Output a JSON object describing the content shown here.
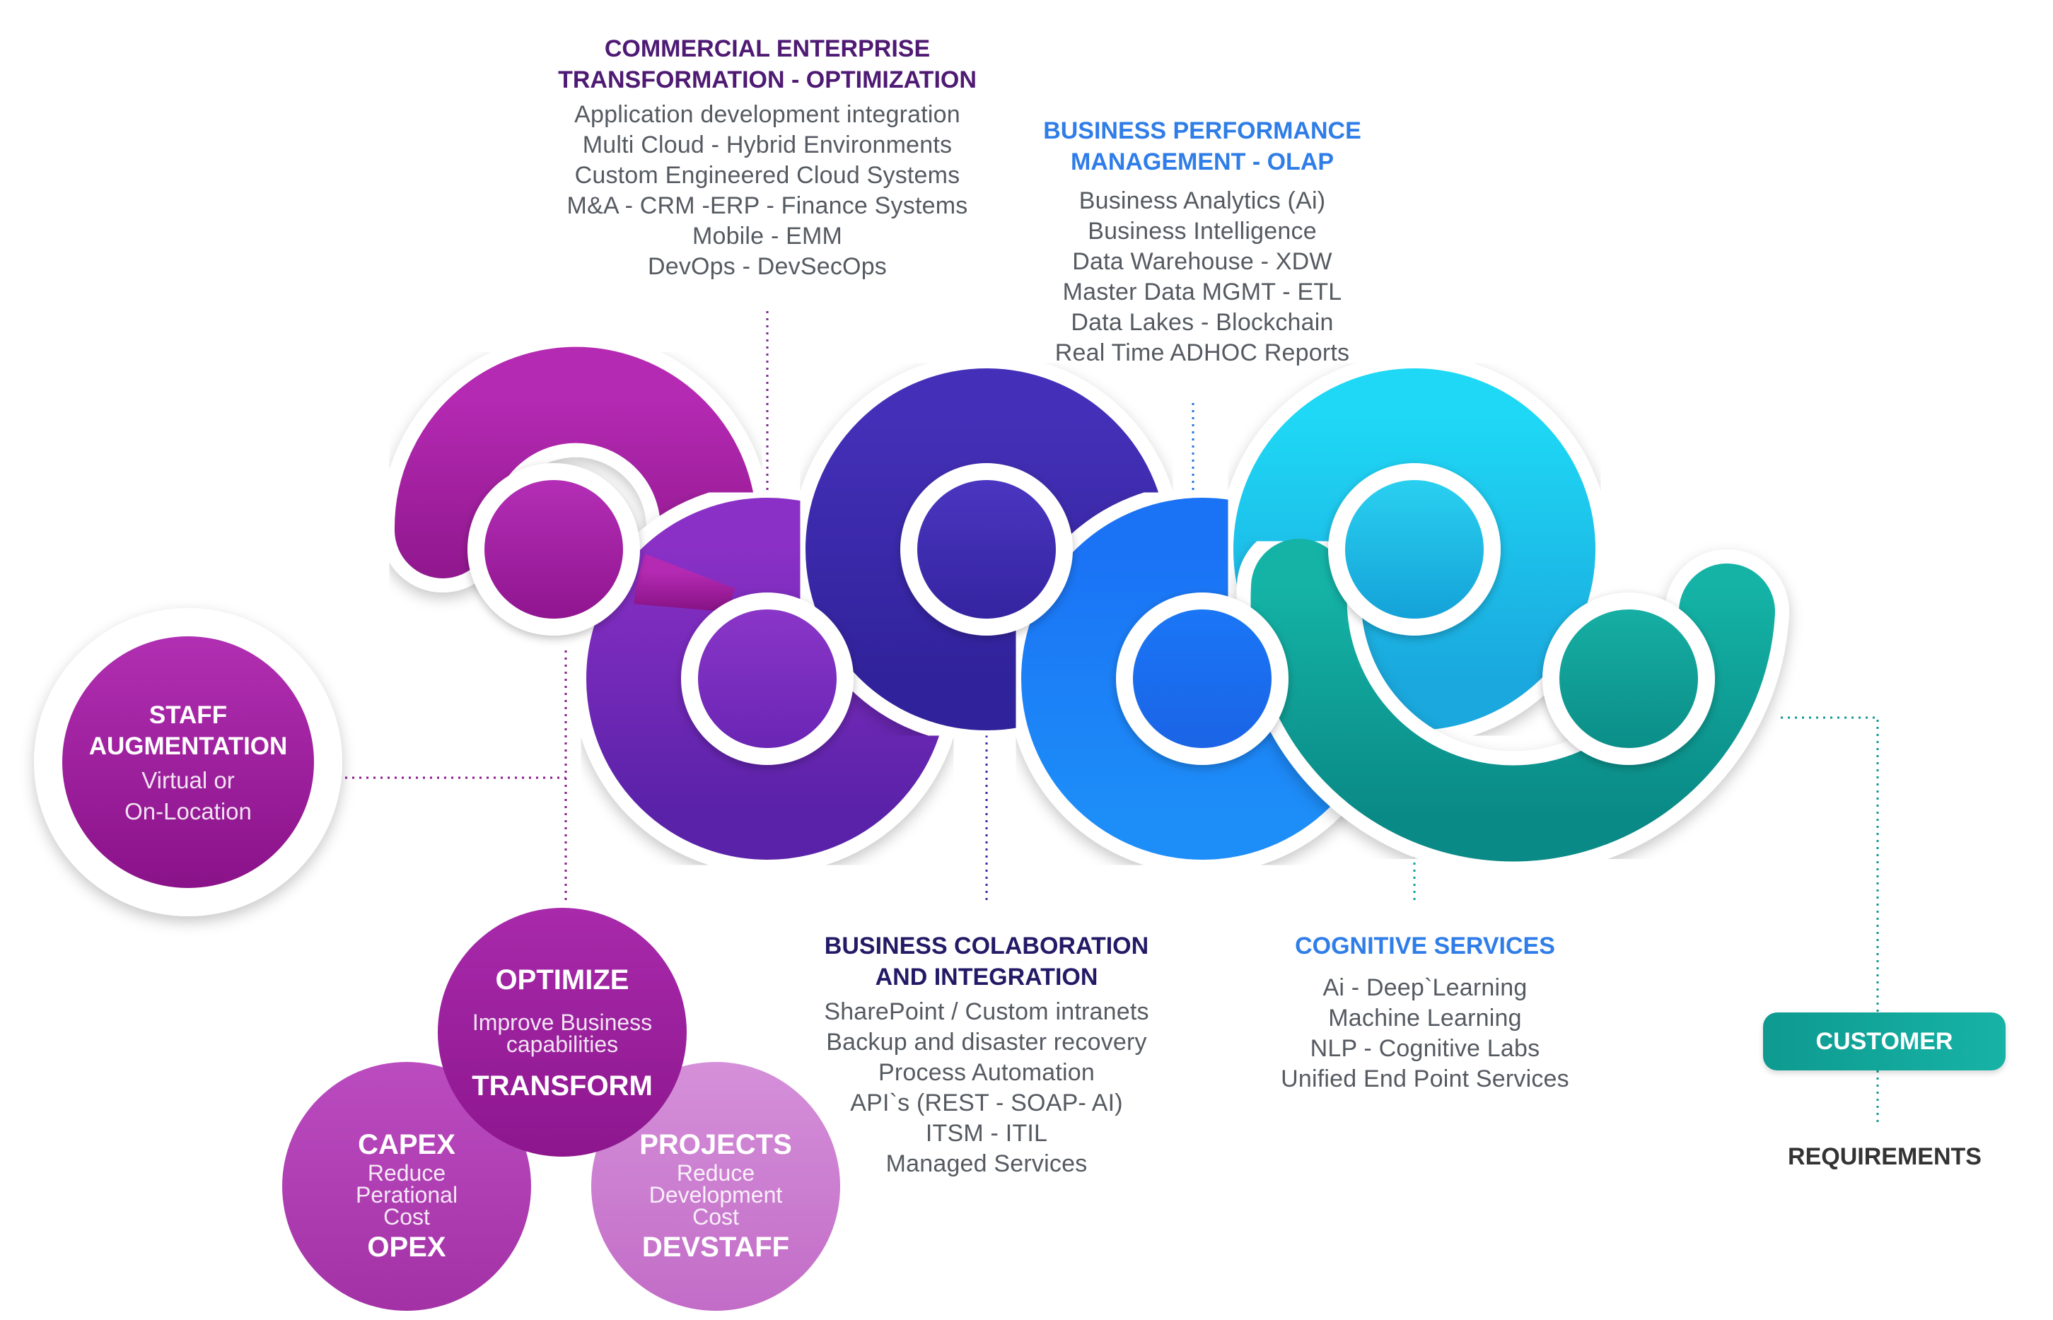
{
  "colors": {
    "magenta": "#a0209e",
    "violet": "#6a2bb8",
    "indigo": "#3a2aa8",
    "blue": "#1f7ef6",
    "cyan": "#1ec8ea",
    "teal": "#0fa79c",
    "heading_purple": "#4e1a73",
    "heading_blue": "#2f7de8",
    "heading_navy": "#231a66"
  },
  "commercial": {
    "title": [
      "COMMERCIAL ENTERPRISE",
      "TRANSFORMATION - OPTIMIZATION"
    ],
    "items": [
      "Application development integration",
      "Multi Cloud - Hybrid Environments",
      "Custom Engineered Cloud Systems",
      "M&A - CRM -ERP - Finance Systems",
      "Mobile - EMM",
      "DevOps - DevSecOps"
    ]
  },
  "bpm": {
    "title": [
      "BUSINESS PERFORMANCE",
      "MANAGEMENT - OLAP"
    ],
    "items": [
      "Business Analytics (Ai)",
      "Business Intelligence",
      "Data Warehouse - XDW",
      "Master Data MGMT - ETL",
      "Data Lakes - Blockchain",
      "Real Time ADHOC Reports"
    ]
  },
  "collab": {
    "title": [
      "BUSINESS COLABORATION",
      "AND INTEGRATION"
    ],
    "items": [
      "SharePoint / Custom intranets",
      "Backup and disaster recovery",
      "Process Automation",
      "API`s (REST - SOAP- AI)",
      "ITSM - ITIL",
      "Managed Services"
    ]
  },
  "cognitive": {
    "title": [
      "COGNITIVE SERVICES"
    ],
    "items": [
      "Ai - Deep`Learning",
      "Machine Learning",
      "NLP - Cognitive Labs",
      "Unified End Point Services"
    ]
  },
  "staff": {
    "title": [
      "STAFF",
      "AUGMENTATION"
    ],
    "sub": [
      "Virtual or",
      "On-Location"
    ]
  },
  "optimize": {
    "top": "OPTIMIZE",
    "sub": [
      "Improve Business",
      "capabilities"
    ],
    "bottom": "TRANSFORM"
  },
  "capex": {
    "top": "CAPEX",
    "sub": [
      "Reduce",
      "Perational",
      "Cost"
    ],
    "bottom": "OPEX"
  },
  "projects": {
    "top": "PROJECTS",
    "sub": [
      "Reduce",
      "Development",
      "Cost"
    ],
    "bottom": "DEVSTAFF"
  },
  "customer": {
    "label": "CUSTOMER"
  },
  "requirements": {
    "label": "REQUIREMENTS"
  }
}
